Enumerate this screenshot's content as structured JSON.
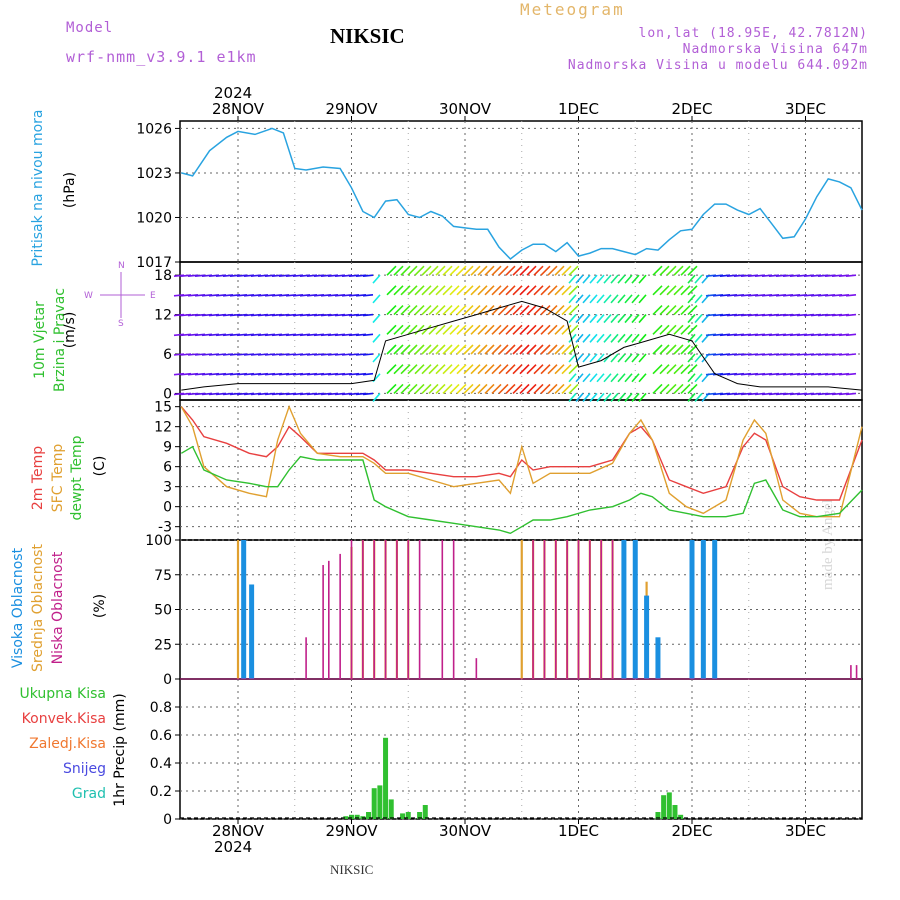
{
  "header": {
    "model_label": "Model",
    "model_name": "wrf-nmm_v3.9.1 e1km",
    "station": "NIKSIC",
    "meteogram": "Meteogram",
    "lonlat": "lon,lat (18.95E, 42.7812N)",
    "elevation": "Nadmorska Visina 647m",
    "model_elevation": "Nadmorska Visina u modelu 644.092m",
    "year_top": "2024",
    "year_bottom": "2024",
    "footer_station": "NIKSIC",
    "watermark": "made by Angel"
  },
  "colors": {
    "pressure": "#29a3e0",
    "temp2m": "#e84040",
    "sfc": "#e0a030",
    "dew": "#30c030",
    "high_cloud": "#1a8fe0",
    "mid_cloud": "#e0a030",
    "low_cloud": "#c0208a",
    "precip_total": "#30c030",
    "model": "#b25fd6",
    "grid": "#666666"
  },
  "chart_data": [
    {
      "type": "line",
      "panel": "pressure",
      "labels": [
        "Pritisak na nivou mora",
        "(hPa)"
      ],
      "ylim": [
        1017,
        1026.5
      ],
      "yticks": [
        1017,
        1020,
        1023,
        1026
      ],
      "x_days": [
        "28NOV",
        "29NOV",
        "30NOV",
        "1DEC",
        "2DEC",
        "3DEC"
      ],
      "x": [
        -0.5,
        -0.4,
        -0.25,
        -0.1,
        0.0,
        0.15,
        0.3,
        0.4,
        0.5,
        0.6,
        0.75,
        0.9,
        1.0,
        1.1,
        1.2,
        1.3,
        1.4,
        1.5,
        1.6,
        1.7,
        1.8,
        1.9,
        2.0,
        2.1,
        2.2,
        2.3,
        2.4,
        2.5,
        2.6,
        2.7,
        2.8,
        2.9,
        3.0,
        3.1,
        3.2,
        3.3,
        3.4,
        3.5,
        3.6,
        3.7,
        3.8,
        3.9,
        4.0,
        4.1,
        4.2,
        4.3,
        4.4,
        4.5,
        4.6,
        4.7,
        4.8,
        4.9,
        5.0,
        5.1,
        5.2,
        5.3,
        5.4,
        5.5
      ],
      "values": [
        1023,
        1022.8,
        1024.5,
        1025.4,
        1025.8,
        1025.6,
        1026,
        1025.7,
        1023.3,
        1023.2,
        1023.4,
        1023.3,
        1022,
        1020.4,
        1020,
        1021.1,
        1021.2,
        1020.2,
        1020,
        1020.4,
        1020.1,
        1019.4,
        1019.3,
        1019.2,
        1019.2,
        1018,
        1017.2,
        1017.8,
        1018.2,
        1018.2,
        1017.7,
        1018.3,
        1017.4,
        1017.6,
        1017.9,
        1017.9,
        1017.7,
        1017.5,
        1017.9,
        1017.8,
        1018.5,
        1019.1,
        1019.2,
        1020.2,
        1020.9,
        1020.9,
        1020.5,
        1020.2,
        1020.6,
        1019.6,
        1018.6,
        1018.7,
        1019.9,
        1021.4,
        1022.6,
        1022.4,
        1022.0,
        1020.5
      ]
    },
    {
      "type": "line",
      "panel": "wind",
      "labels": [
        "10m Vjetar",
        "Brzina i Pravac",
        "(m/s)"
      ],
      "compass": [
        "N",
        "W",
        "E",
        "S"
      ],
      "ylim": [
        -1,
        20
      ],
      "yticks": [
        0,
        6,
        12,
        18
      ],
      "x": [
        -0.5,
        -0.3,
        0.0,
        0.3,
        0.5,
        0.7,
        1.0,
        1.2,
        1.3,
        1.5,
        1.7,
        1.9,
        2.1,
        2.3,
        2.5,
        2.7,
        2.9,
        3.0,
        3.2,
        3.4,
        3.6,
        3.8,
        4.0,
        4.2,
        4.4,
        4.6,
        4.8,
        5.0,
        5.2,
        5.5
      ],
      "values": [
        0.5,
        1,
        1.5,
        1.5,
        1.5,
        1.5,
        1.5,
        2,
        8,
        9,
        10,
        11,
        12,
        13,
        14,
        13,
        11,
        4,
        5,
        7,
        8,
        9,
        8,
        3,
        1.5,
        1,
        1,
        1,
        1,
        0.5
      ]
    },
    {
      "type": "line",
      "panel": "temperature",
      "labels": [
        "2m Temp",
        "SFC Temp",
        "dewpt Temp",
        "(C)"
      ],
      "ylim": [
        -5,
        16
      ],
      "yticks": [
        -3,
        0,
        3,
        6,
        9,
        12,
        15
      ],
      "x": [
        -0.5,
        -0.4,
        -0.3,
        -0.1,
        0.1,
        0.25,
        0.35,
        0.45,
        0.55,
        0.7,
        0.9,
        1.1,
        1.2,
        1.3,
        1.5,
        1.7,
        1.9,
        2.1,
        2.3,
        2.4,
        2.5,
        2.6,
        2.75,
        2.9,
        3.1,
        3.3,
        3.45,
        3.55,
        3.65,
        3.8,
        3.95,
        4.1,
        4.3,
        4.45,
        4.55,
        4.65,
        4.8,
        4.95,
        5.1,
        5.3,
        5.5
      ],
      "series": [
        {
          "name": "2m Temp",
          "values": [
            15,
            13,
            10.5,
            9.5,
            8,
            7.5,
            9,
            12,
            10.5,
            8,
            8,
            8,
            7,
            5.5,
            5.5,
            5,
            4.5,
            4.5,
            5,
            4.5,
            7,
            5.5,
            6,
            6,
            6,
            7,
            11,
            12,
            10,
            4,
            3,
            2,
            3,
            9,
            11,
            10,
            3,
            1.5,
            1,
            1,
            10
          ]
        },
        {
          "name": "SFC Temp",
          "values": [
            15,
            12,
            6,
            3,
            2,
            1.5,
            10,
            15,
            11,
            8,
            7.5,
            7.5,
            6.5,
            5,
            5,
            4,
            3,
            3.5,
            4,
            2,
            9,
            3.5,
            5,
            5,
            5,
            6.5,
            11,
            13,
            10,
            2,
            0,
            -1,
            1,
            10,
            13,
            11,
            1,
            -1,
            -1.5,
            -1.5,
            12
          ]
        },
        {
          "name": "dewpt Temp",
          "values": [
            8,
            9,
            5.5,
            4,
            3.5,
            3,
            3,
            5.5,
            7.5,
            7,
            7,
            7,
            1,
            0,
            -1.5,
            -2,
            -2.5,
            -3,
            -3.5,
            -4,
            -3,
            -2,
            -2,
            -1.5,
            -0.5,
            0,
            1,
            2,
            1.5,
            -0.5,
            -1,
            -1.5,
            -1.5,
            -1,
            3.5,
            4,
            -0.5,
            -1.5,
            -1.5,
            -1,
            2.5
          ]
        }
      ]
    },
    {
      "type": "bar",
      "panel": "clouds",
      "labels": [
        "Visoka Oblacnost",
        "Srednja Oblacnost",
        "Niska Oblacnost",
        "(%)"
      ],
      "ylim": [
        0,
        100
      ],
      "yticks": [
        0,
        25,
        50,
        75,
        100
      ],
      "series": [
        {
          "name": "Visoka Oblacnost",
          "x": [
            0.05,
            0.12,
            3.4,
            3.5,
            3.6,
            3.7,
            4.0,
            4.1,
            4.2
          ],
          "values": [
            100,
            68,
            100,
            100,
            60,
            30,
            100,
            100,
            100
          ]
        },
        {
          "name": "Srednja Oblacnost",
          "x": [
            0.0,
            0.05,
            1.0,
            1.1,
            1.2,
            1.3,
            1.4,
            1.5,
            2.5,
            2.6,
            2.7,
            2.8,
            2.9,
            3.0,
            3.1,
            3.2,
            3.3,
            3.4,
            3.5,
            3.6,
            4.0,
            4.1,
            4.2
          ],
          "values": [
            100,
            100,
            95,
            100,
            100,
            100,
            100,
            100,
            100,
            100,
            100,
            100,
            100,
            100,
            100,
            100,
            100,
            100,
            100,
            70,
            100,
            100,
            100
          ]
        },
        {
          "name": "Niska Oblacnost",
          "x": [
            0.6,
            0.75,
            0.8,
            0.9,
            1.0,
            1.1,
            1.2,
            1.3,
            1.4,
            1.5,
            1.6,
            1.8,
            1.9,
            2.1,
            2.6,
            2.7,
            2.8,
            2.9,
            3.0,
            3.1,
            3.2,
            3.3,
            3.5,
            3.6,
            4.0,
            4.1,
            4.2,
            5.4,
            5.45
          ],
          "values": [
            30,
            82,
            85,
            90,
            100,
            100,
            100,
            100,
            100,
            100,
            100,
            100,
            100,
            15,
            100,
            100,
            100,
            100,
            100,
            100,
            100,
            100,
            100,
            60,
            100,
            100,
            100,
            10,
            10
          ]
        }
      ]
    },
    {
      "type": "bar",
      "panel": "precipitation",
      "labels": [
        "Ukupna Kisa",
        "Konvek.Kisa",
        "Zaledj.Kisa",
        "Snijeg",
        "Grad",
        "1hr Precip (mm)"
      ],
      "ylim": [
        0,
        1.0
      ],
      "yticks": [
        0,
        0.2,
        0.4,
        0.6,
        0.8
      ],
      "series": [
        {
          "name": "Ukupna Kisa",
          "x": [
            0.95,
            1.0,
            1.05,
            1.1,
            1.15,
            1.2,
            1.25,
            1.3,
            1.35,
            1.45,
            1.5,
            1.6,
            1.65,
            3.7,
            3.75,
            3.8,
            3.85,
            3.9
          ],
          "values": [
            0.02,
            0.03,
            0.03,
            0.02,
            0.05,
            0.22,
            0.24,
            0.58,
            0.14,
            0.04,
            0.05,
            0.05,
            0.1,
            0.05,
            0.17,
            0.19,
            0.1,
            0.03
          ]
        }
      ]
    }
  ]
}
